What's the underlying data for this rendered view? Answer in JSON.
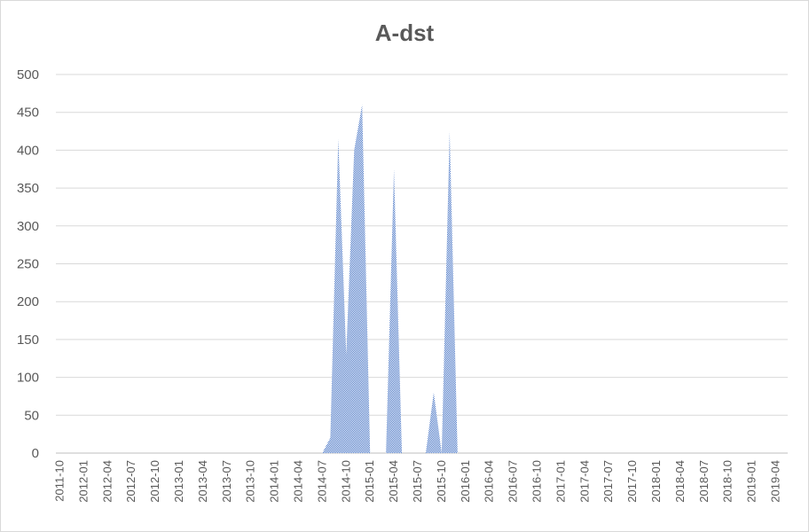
{
  "chart_data": {
    "type": "area",
    "title": "A-dst",
    "xlabel": "",
    "ylabel": "",
    "ylim": [
      0,
      500
    ],
    "yticks": [
      0,
      50,
      100,
      150,
      200,
      250,
      300,
      350,
      400,
      450,
      500
    ],
    "grid": true,
    "legend": "none",
    "x_tick_labels": [
      "2011-10",
      "2012-01",
      "2012-04",
      "2012-07",
      "2012-10",
      "2013-01",
      "2013-04",
      "2013-07",
      "2013-10",
      "2014-01",
      "2014-04",
      "2014-07",
      "2014-10",
      "2015-01",
      "2015-04",
      "2015-07",
      "2015-10",
      "2016-01",
      "2016-04",
      "2016-07",
      "2016-10",
      "2017-01",
      "2017-04",
      "2017-07",
      "2017-10",
      "2018-01",
      "2018-04",
      "2018-07",
      "2018-10",
      "2019-01",
      "2019-04"
    ],
    "x": [
      "2011-10",
      "2011-11",
      "2011-12",
      "2012-01",
      "2012-02",
      "2012-03",
      "2012-04",
      "2012-05",
      "2012-06",
      "2012-07",
      "2012-08",
      "2012-09",
      "2012-10",
      "2012-11",
      "2012-12",
      "2013-01",
      "2013-02",
      "2013-03",
      "2013-04",
      "2013-05",
      "2013-06",
      "2013-07",
      "2013-08",
      "2013-09",
      "2013-10",
      "2013-11",
      "2013-12",
      "2014-01",
      "2014-02",
      "2014-03",
      "2014-04",
      "2014-05",
      "2014-06",
      "2014-07",
      "2014-08",
      "2014-09",
      "2014-10",
      "2014-11",
      "2014-12",
      "2015-01",
      "2015-02",
      "2015-03",
      "2015-04",
      "2015-05",
      "2015-06",
      "2015-07",
      "2015-08",
      "2015-09",
      "2015-10",
      "2015-11",
      "2015-12",
      "2016-01",
      "2016-02",
      "2016-03",
      "2016-04",
      "2016-05",
      "2016-06",
      "2016-07",
      "2016-08",
      "2016-09",
      "2016-10",
      "2016-11",
      "2016-12",
      "2017-01",
      "2017-02",
      "2017-03",
      "2017-04",
      "2017-05",
      "2017-06",
      "2017-07",
      "2017-08",
      "2017-09",
      "2017-10",
      "2017-11",
      "2017-12",
      "2018-01",
      "2018-02",
      "2018-03",
      "2018-04",
      "2018-05",
      "2018-06",
      "2018-07",
      "2018-08",
      "2018-09",
      "2018-10",
      "2018-11",
      "2018-12",
      "2019-01",
      "2019-02",
      "2019-03",
      "2019-04",
      "2019-05"
    ],
    "series": [
      {
        "values": [
          0,
          0,
          0,
          0,
          0,
          0,
          0,
          0,
          0,
          0,
          0,
          0,
          0,
          0,
          0,
          0,
          0,
          0,
          0,
          0,
          0,
          0,
          0,
          0,
          0,
          0,
          0,
          0,
          0,
          0,
          0,
          0,
          0,
          0,
          20,
          415,
          130,
          400,
          460,
          0,
          0,
          0,
          375,
          0,
          0,
          0,
          0,
          80,
          0,
          425,
          0,
          0,
          0,
          0,
          0,
          0,
          0,
          0,
          0,
          0,
          0,
          0,
          0,
          0,
          0,
          0,
          0,
          0,
          0,
          0,
          0,
          0,
          0,
          0,
          0,
          0,
          0,
          0,
          0,
          0,
          0,
          0,
          0,
          0,
          0,
          0,
          0,
          0,
          0,
          0,
          0,
          0
        ]
      }
    ],
    "fill_color": "#4472c4"
  }
}
